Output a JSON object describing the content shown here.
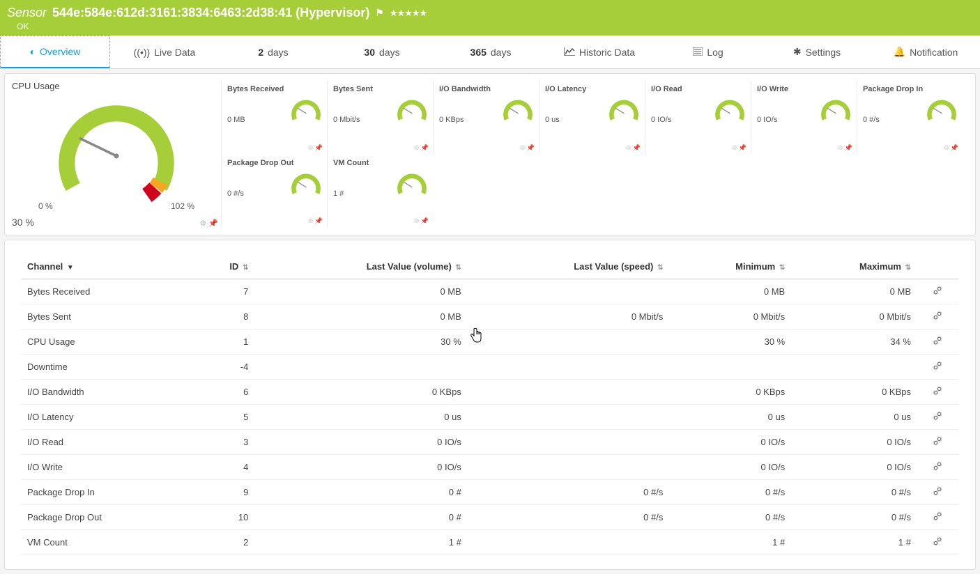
{
  "header": {
    "sensor_label": "Sensor",
    "sensor_name": "544e:584e:612d:3161:3834:6463:2d38:41 (Hypervisor)",
    "status": "OK",
    "stars": "★★★★★",
    "bg_color": "#a6ce39"
  },
  "tabs": [
    {
      "label": "Overview",
      "icon": "spinner"
    },
    {
      "label": "Live Data",
      "icon": "broadcast"
    },
    {
      "num": "2",
      "label": "days"
    },
    {
      "num": "30",
      "label": "days"
    },
    {
      "num": "365",
      "label": "days"
    },
    {
      "label": "Historic Data",
      "icon": "chart"
    },
    {
      "label": "Log",
      "icon": "log"
    },
    {
      "label": "Settings",
      "icon": "gear"
    },
    {
      "label": "Notification",
      "icon": "bell"
    }
  ],
  "main_gauge": {
    "title": "CPU Usage",
    "value": "30 %",
    "min_label": "0 %",
    "max_label": "102 %",
    "fill_percent": 30,
    "colors": {
      "arc": "#a6ce39",
      "warn": "#f5a623",
      "crit": "#d0021b",
      "needle": "#888"
    }
  },
  "mini_gauges": [
    {
      "title": "Bytes Received",
      "value": "0 MB"
    },
    {
      "title": "Bytes Sent",
      "value": "0 Mbit/s"
    },
    {
      "title": "I/O Bandwidth",
      "value": "0 KBps"
    },
    {
      "title": "I/O Latency",
      "value": "0 us"
    },
    {
      "title": "I/O Read",
      "value": "0 IO/s"
    },
    {
      "title": "I/O Write",
      "value": "0 IO/s"
    },
    {
      "title": "Package Drop In",
      "value": "0 #/s"
    },
    {
      "title": "Package Drop Out",
      "value": "0 #/s"
    },
    {
      "title": "VM Count",
      "value": "1 #"
    }
  ],
  "table": {
    "columns": [
      "Channel",
      "ID",
      "Last Value (volume)",
      "Last Value (speed)",
      "Minimum",
      "Maximum"
    ],
    "rows": [
      {
        "channel": "Bytes Received",
        "id": "7",
        "vol": "0 MB",
        "speed": "",
        "min": "0 MB",
        "max": "0 MB"
      },
      {
        "channel": "Bytes Sent",
        "id": "8",
        "vol": "0 MB",
        "speed": "0 Mbit/s",
        "min": "0 Mbit/s",
        "max": "0 Mbit/s"
      },
      {
        "channel": "CPU Usage",
        "id": "1",
        "vol": "30 %",
        "speed": "",
        "min": "30 %",
        "max": "34 %"
      },
      {
        "channel": "Downtime",
        "id": "-4",
        "vol": "",
        "speed": "",
        "min": "",
        "max": ""
      },
      {
        "channel": "I/O Bandwidth",
        "id": "6",
        "vol": "0 KBps",
        "speed": "",
        "min": "0 KBps",
        "max": "0 KBps"
      },
      {
        "channel": "I/O Latency",
        "id": "5",
        "vol": "0 us",
        "speed": "",
        "min": "0 us",
        "max": "0 us"
      },
      {
        "channel": "I/O Read",
        "id": "3",
        "vol": "0 IO/s",
        "speed": "",
        "min": "0 IO/s",
        "max": "0 IO/s"
      },
      {
        "channel": "I/O Write",
        "id": "4",
        "vol": "0 IO/s",
        "speed": "",
        "min": "0 IO/s",
        "max": "0 IO/s"
      },
      {
        "channel": "Package Drop In",
        "id": "9",
        "vol": "0 #",
        "speed": "0 #/s",
        "min": "0 #/s",
        "max": "0 #/s"
      },
      {
        "channel": "Package Drop Out",
        "id": "10",
        "vol": "0 #",
        "speed": "0 #/s",
        "min": "0 #/s",
        "max": "0 #/s"
      },
      {
        "channel": "VM Count",
        "id": "2",
        "vol": "1 #",
        "speed": "",
        "min": "1 #",
        "max": "1 #"
      }
    ]
  }
}
